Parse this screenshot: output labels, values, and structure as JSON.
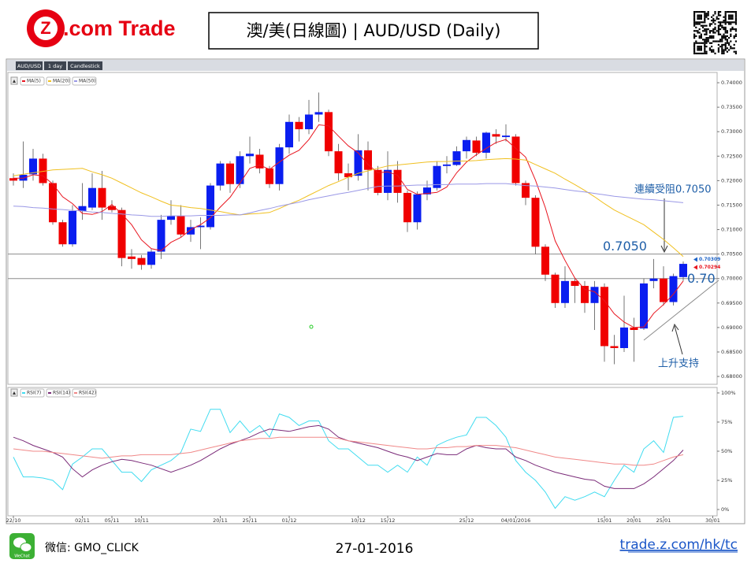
{
  "header": {
    "logo_mark": "Z",
    "logo_text": ".com Trade",
    "title": "澳/美(日線圖) | AUD/USD (Daily)"
  },
  "footer": {
    "wechat_label": "WeChat",
    "wechat_id": "微信: GMO_CLICK",
    "date": "27-01-2016",
    "url": "trade.z.com/hk/tc"
  },
  "chart_data": {
    "type": "candlestick",
    "tabs": [
      "AUD/USD",
      "1 day",
      "Candlestick"
    ],
    "categories": [
      "22/10",
      null,
      null,
      null,
      null,
      null,
      null,
      "02/11",
      null,
      null,
      "05/11",
      null,
      null,
      "10/11",
      null,
      null,
      null,
      null,
      null,
      null,
      null,
      "20/11",
      null,
      null,
      "25/11",
      null,
      null,
      null,
      "01/12",
      null,
      null,
      null,
      null,
      null,
      null,
      "10/12",
      null,
      null,
      "15/12",
      null,
      null,
      null,
      null,
      null,
      null,
      null,
      "25/12",
      null,
      null,
      null,
      null,
      "04/01/2016",
      null,
      null,
      null,
      null,
      null,
      null,
      null,
      null,
      "15/01",
      null,
      null,
      "20/01",
      null,
      null,
      "25/01",
      null,
      null,
      null,
      null,
      "30/01"
    ],
    "open": [
      0.7205,
      0.72,
      0.7213,
      0.7245,
      0.7195,
      0.7115,
      0.707,
      0.7138,
      0.7145,
      0.7185,
      0.7148,
      0.714,
      0.7045,
      0.7042,
      0.7028,
      0.7055,
      0.712,
      0.7128,
      0.709,
      0.7105,
      0.7105,
      0.719,
      0.7235,
      0.7193,
      0.725,
      0.7253,
      0.7225,
      0.7193,
      0.7268,
      0.732,
      0.7305,
      0.7335,
      0.734,
      0.726,
      0.7215,
      0.721,
      0.7262,
      0.7222,
      0.7175,
      0.7222,
      0.7175,
      0.7115,
      0.7172,
      0.7185,
      0.723,
      0.7232,
      0.726,
      0.7282,
      0.7257,
      0.7295,
      0.7289,
      0.729,
      0.7195,
      0.7165,
      0.7065,
      0.7008,
      0.695,
      0.6995,
      0.6985,
      0.695,
      0.6983,
      0.6862,
      0.6858,
      0.69,
      0.6898,
      0.6995,
      0.7,
      0.6952,
      0.7003,
      null,
      null,
      null
    ],
    "high": [
      0.7215,
      0.728,
      0.7265,
      0.7255,
      0.72,
      0.712,
      0.715,
      0.7195,
      0.7215,
      0.722,
      0.716,
      0.7145,
      0.706,
      0.7048,
      0.706,
      0.713,
      0.716,
      0.715,
      0.712,
      0.7125,
      0.7195,
      0.724,
      0.724,
      0.726,
      0.729,
      0.7265,
      0.723,
      0.7275,
      0.7335,
      0.733,
      0.7365,
      0.738,
      0.7345,
      0.7275,
      0.7235,
      0.7295,
      0.728,
      0.723,
      0.726,
      0.724,
      0.718,
      0.7178,
      0.72,
      0.724,
      0.725,
      0.727,
      0.729,
      0.729,
      0.73,
      0.7305,
      0.7315,
      0.7295,
      0.72,
      0.717,
      0.707,
      0.7012,
      0.7025,
      0.7,
      0.6995,
      0.6995,
      0.699,
      0.6885,
      0.6965,
      0.692,
      0.7,
      0.704,
      0.7025,
      0.701,
      0.7035,
      null,
      null,
      null
    ],
    "low": [
      0.719,
      0.7185,
      0.72,
      0.719,
      0.711,
      0.7065,
      0.7065,
      0.712,
      0.714,
      0.712,
      0.7135,
      0.7025,
      0.702,
      0.7018,
      0.702,
      0.704,
      0.711,
      0.7085,
      0.7075,
      0.706,
      0.71,
      0.718,
      0.7175,
      0.7185,
      0.7235,
      0.7215,
      0.7185,
      0.718,
      0.7255,
      0.728,
      0.7295,
      0.732,
      0.725,
      0.72,
      0.718,
      0.72,
      0.718,
      0.717,
      0.716,
      0.7155,
      0.7095,
      0.71,
      0.716,
      0.718,
      0.7215,
      0.723,
      0.7245,
      0.725,
      0.7245,
      0.7275,
      0.728,
      0.719,
      0.715,
      0.705,
      0.6995,
      0.694,
      0.694,
      0.695,
      0.693,
      0.6895,
      0.683,
      0.6825,
      0.685,
      0.683,
      0.6895,
      0.698,
      0.6945,
      0.6945,
      0.6995,
      null,
      null,
      null
    ],
    "close": [
      0.72,
      0.7212,
      0.7245,
      0.7195,
      0.7115,
      0.707,
      0.7138,
      0.7148,
      0.7185,
      0.7145,
      0.714,
      0.7042,
      0.704,
      0.7028,
      0.7055,
      0.712,
      0.7128,
      0.709,
      0.7105,
      0.7108,
      0.719,
      0.7235,
      0.7193,
      0.725,
      0.7255,
      0.7225,
      0.7193,
      0.7268,
      0.732,
      0.7305,
      0.7335,
      0.734,
      0.726,
      0.7215,
      0.7207,
      0.7262,
      0.7222,
      0.7175,
      0.7222,
      0.7175,
      0.7115,
      0.7172,
      0.7186,
      0.723,
      0.7233,
      0.726,
      0.7283,
      0.7257,
      0.7298,
      0.729,
      0.7292,
      0.7195,
      0.7165,
      0.7065,
      0.7008,
      0.695,
      0.6995,
      0.6985,
      0.695,
      0.6983,
      0.6862,
      0.6858,
      0.69,
      0.6895,
      0.699,
      0.7,
      0.6952,
      0.7005,
      0.703,
      null,
      null,
      null
    ],
    "up_color": "#0a1ef0",
    "down_color": "#f00000",
    "series": [
      {
        "name": "MA(5)",
        "color": "#e8141e",
        "values": [
          0.7205,
          0.7205,
          0.7212,
          0.721,
          0.7193,
          0.7167,
          0.7153,
          0.7133,
          0.7131,
          0.7137,
          0.7151,
          0.7132,
          0.711,
          0.7079,
          0.7061,
          0.7057,
          0.7074,
          0.7084,
          0.71,
          0.711,
          0.7124,
          0.7146,
          0.7166,
          0.7195,
          0.7225,
          0.7232,
          0.7223,
          0.7238,
          0.7252,
          0.7262,
          0.7284,
          0.7314,
          0.7312,
          0.7291,
          0.7271,
          0.7257,
          0.7233,
          0.7216,
          0.7218,
          0.7211,
          0.7182,
          0.7172,
          0.7174,
          0.7176,
          0.7187,
          0.7216,
          0.7238,
          0.7253,
          0.7266,
          0.7278,
          0.7284,
          0.7266,
          0.7248,
          0.7201,
          0.7145,
          0.7077,
          0.7037,
          0.7001,
          0.6978,
          0.6973,
          0.6955,
          0.6928,
          0.6911,
          0.69,
          0.6901,
          0.6929,
          0.6947,
          0.6968,
          0.6995,
          null,
          null,
          null
        ]
      },
      {
        "name": "MA(20)",
        "color": "#f0c020",
        "values": [
          0.721,
          0.7213,
          0.7216,
          0.7219,
          0.7222,
          0.7223,
          0.7224,
          0.7225,
          0.7218,
          0.7212,
          0.7205,
          0.7195,
          0.7185,
          0.7175,
          0.7167,
          0.7158,
          0.715,
          0.7148,
          0.7145,
          0.7143,
          0.714,
          0.7137,
          0.7133,
          0.713,
          0.7132,
          0.7133,
          0.7135,
          0.7143,
          0.7152,
          0.716,
          0.717,
          0.718,
          0.719,
          0.7198,
          0.7207,
          0.7215,
          0.722,
          0.7225,
          0.723,
          0.7232,
          0.7234,
          0.7236,
          0.7238,
          0.7239,
          0.7239,
          0.724,
          0.724,
          0.7241,
          0.7243,
          0.7244,
          0.7245,
          0.7244,
          0.7242,
          0.7233,
          0.7224,
          0.7215,
          0.7203,
          0.7192,
          0.718,
          0.7167,
          0.7153,
          0.714,
          0.713,
          0.712,
          0.711,
          0.7095,
          0.708,
          0.7063,
          0.7045,
          null,
          null,
          null
        ]
      },
      {
        "name": "MA(50)",
        "color": "#9a98e6",
        "values": [
          0.7148,
          0.7147,
          0.7145,
          0.7144,
          0.7142,
          0.7141,
          0.7139,
          0.7138,
          0.7136,
          0.7135,
          0.7133,
          0.7132,
          0.713,
          0.7129,
          0.7127,
          0.7127,
          0.7128,
          0.7128,
          0.7128,
          0.7129,
          0.7129,
          0.7129,
          0.713,
          0.713,
          0.7134,
          0.7139,
          0.7143,
          0.7148,
          0.7152,
          0.7156,
          0.7161,
          0.7165,
          0.7169,
          0.7173,
          0.7176,
          0.718,
          0.7184,
          0.7188,
          0.7189,
          0.7189,
          0.719,
          0.7191,
          0.7191,
          0.7192,
          0.7192,
          0.7193,
          0.7193,
          0.7193,
          0.7194,
          0.7194,
          0.7194,
          0.7192,
          0.719,
          0.7189,
          0.7187,
          0.7185,
          0.7182,
          0.7179,
          0.7177,
          0.7174,
          0.7171,
          0.7168,
          0.7166,
          0.7164,
          0.7162,
          0.7161,
          0.7159,
          0.7157,
          0.7155,
          null,
          null,
          null
        ]
      }
    ],
    "ylim": [
      0.6784,
      0.7421
    ],
    "yticks": [
      {
        "value": 0.68,
        "label": "0.68000"
      },
      {
        "value": 0.685,
        "label": "0.68500"
      },
      {
        "value": 0.69,
        "label": "0.69000"
      },
      {
        "value": 0.695,
        "label": "0.69500"
      },
      {
        "value": 0.7,
        "label": "0.70000"
      },
      {
        "value": 0.705,
        "label": "0.70500"
      },
      {
        "value": 0.71,
        "label": "0.71000"
      },
      {
        "value": 0.715,
        "label": "0.71500"
      },
      {
        "value": 0.72,
        "label": "0.72000"
      },
      {
        "value": 0.725,
        "label": "0.72500"
      },
      {
        "value": 0.73,
        "label": "0.73000"
      },
      {
        "value": 0.735,
        "label": "0.73500"
      },
      {
        "value": 0.74,
        "label": "0.74000"
      }
    ],
    "levels": [
      {
        "value": 0.705,
        "label": "0.7050"
      },
      {
        "value": 0.7,
        "label": "0.70"
      }
    ],
    "level_color": "#1f5fa8",
    "last_prices": [
      {
        "value": 0.70309,
        "color": "#1e64c8"
      },
      {
        "value": 0.70294,
        "color": "#e8141e"
      }
    ],
    "annotations": [
      "連續受阻0.7050",
      "上升支持"
    ],
    "rsi": {
      "ylim": [
        -5.4,
        104.7
      ],
      "yticks": [
        {
          "value": 0,
          "label": "0%"
        },
        {
          "value": 25,
          "label": "25%"
        },
        {
          "value": 50,
          "label": "50%"
        },
        {
          "value": 75,
          "label": "75%"
        },
        {
          "value": 100,
          "label": "100%"
        }
      ],
      "series": [
        {
          "name": "RSI(7)",
          "color": "#40dcf0",
          "values": [
            45,
            28,
            28,
            27,
            25,
            17,
            39,
            45,
            52,
            52,
            42,
            32,
            32,
            24,
            34,
            38,
            42,
            49,
            69,
            67,
            86,
            86,
            66,
            76,
            66,
            72,
            62,
            82,
            79,
            72,
            76,
            76,
            59,
            52,
            52,
            45,
            38,
            38,
            32,
            38,
            32,
            45,
            38,
            55,
            59,
            62,
            64,
            79,
            79,
            72,
            62,
            42,
            32,
            25,
            15,
            1,
            11,
            8,
            11,
            15,
            11,
            25,
            38,
            32,
            52,
            59,
            49,
            79,
            80,
            null,
            null,
            null
          ]
        },
        {
          "name": "RSI(14)",
          "color": "#7a2a78",
          "values": [
            62,
            59,
            55,
            52,
            49,
            45,
            35,
            28,
            34,
            38,
            41,
            43,
            42,
            40,
            38,
            35,
            32,
            35,
            38,
            42,
            47,
            52,
            56,
            59,
            62,
            66,
            69,
            68,
            67,
            69,
            71,
            72,
            69,
            62,
            59,
            57,
            55,
            53,
            50,
            47,
            45,
            42,
            45,
            48,
            47,
            47,
            52,
            55,
            53,
            52,
            52,
            45,
            42,
            38,
            35,
            32,
            30,
            28,
            26,
            25,
            20,
            18,
            18,
            18,
            22,
            28,
            35,
            42,
            51,
            null,
            null,
            null
          ]
        },
        {
          "name": "RSI(42)",
          "color": "#f08888",
          "values": [
            52,
            51,
            50,
            50,
            49,
            48,
            47,
            46,
            45,
            44,
            45,
            46,
            46,
            47,
            47,
            47,
            47,
            48,
            49,
            51,
            53,
            55,
            57,
            59,
            60,
            61,
            61,
            62,
            62,
            62,
            62,
            62,
            62,
            61,
            59,
            58,
            57,
            56,
            55,
            54,
            53,
            52,
            52,
            53,
            53,
            54,
            54,
            55,
            55,
            55,
            54,
            53,
            51,
            49,
            47,
            45,
            44,
            43,
            42,
            41,
            40,
            39,
            39,
            38,
            38,
            39,
            42,
            45,
            47,
            null,
            null,
            null
          ]
        }
      ]
    }
  }
}
